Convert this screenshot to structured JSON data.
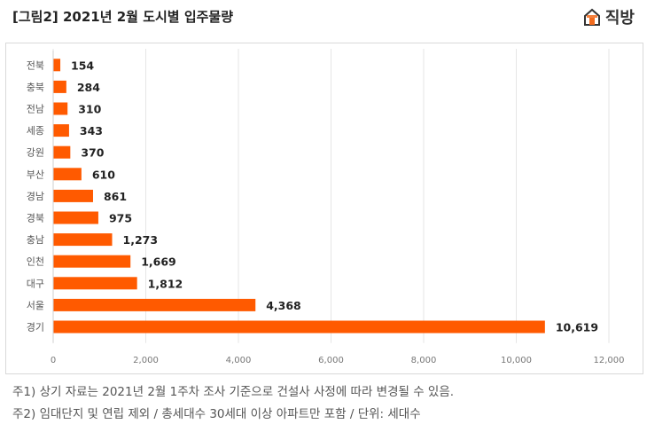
{
  "header": {
    "title": "[그림2] 2021년 2월 도시별 입주물량",
    "brand": "직방",
    "brand_icon": "house-icon",
    "brand_color": "#f26b1d"
  },
  "chart_data": {
    "type": "bar",
    "orientation": "horizontal",
    "categories": [
      "전북",
      "충북",
      "전남",
      "세종",
      "강원",
      "부산",
      "경남",
      "경북",
      "충남",
      "인천",
      "대구",
      "서울",
      "경기"
    ],
    "values": [
      154,
      284,
      310,
      343,
      370,
      610,
      861,
      975,
      1273,
      1669,
      1812,
      4368,
      10619
    ],
    "value_labels": [
      "154",
      "284",
      "310",
      "343",
      "370",
      "610",
      "861",
      "975",
      "1,273",
      "1,669",
      "1,812",
      "4,368",
      "10,619"
    ],
    "xlim": [
      0,
      12000
    ],
    "xticks": [
      0,
      2000,
      4000,
      6000,
      8000,
      10000,
      12000
    ],
    "xtick_labels": [
      "0",
      "2,000",
      "4,000",
      "6,000",
      "8,000",
      "10,000",
      "12,000"
    ],
    "bar_color": "#ff5a00",
    "grid": true,
    "legend": "none"
  },
  "notes": {
    "note1": "주1) 상기 자료는 2021년 2월 1주차 조사 기준으로 건설사 사정에 따라 변경될 수 있음.",
    "note2": "주2) 임대단지 및 연립 제외 / 총세대수 30세대 이상 아파트만 포함 / 단위: 세대수"
  }
}
